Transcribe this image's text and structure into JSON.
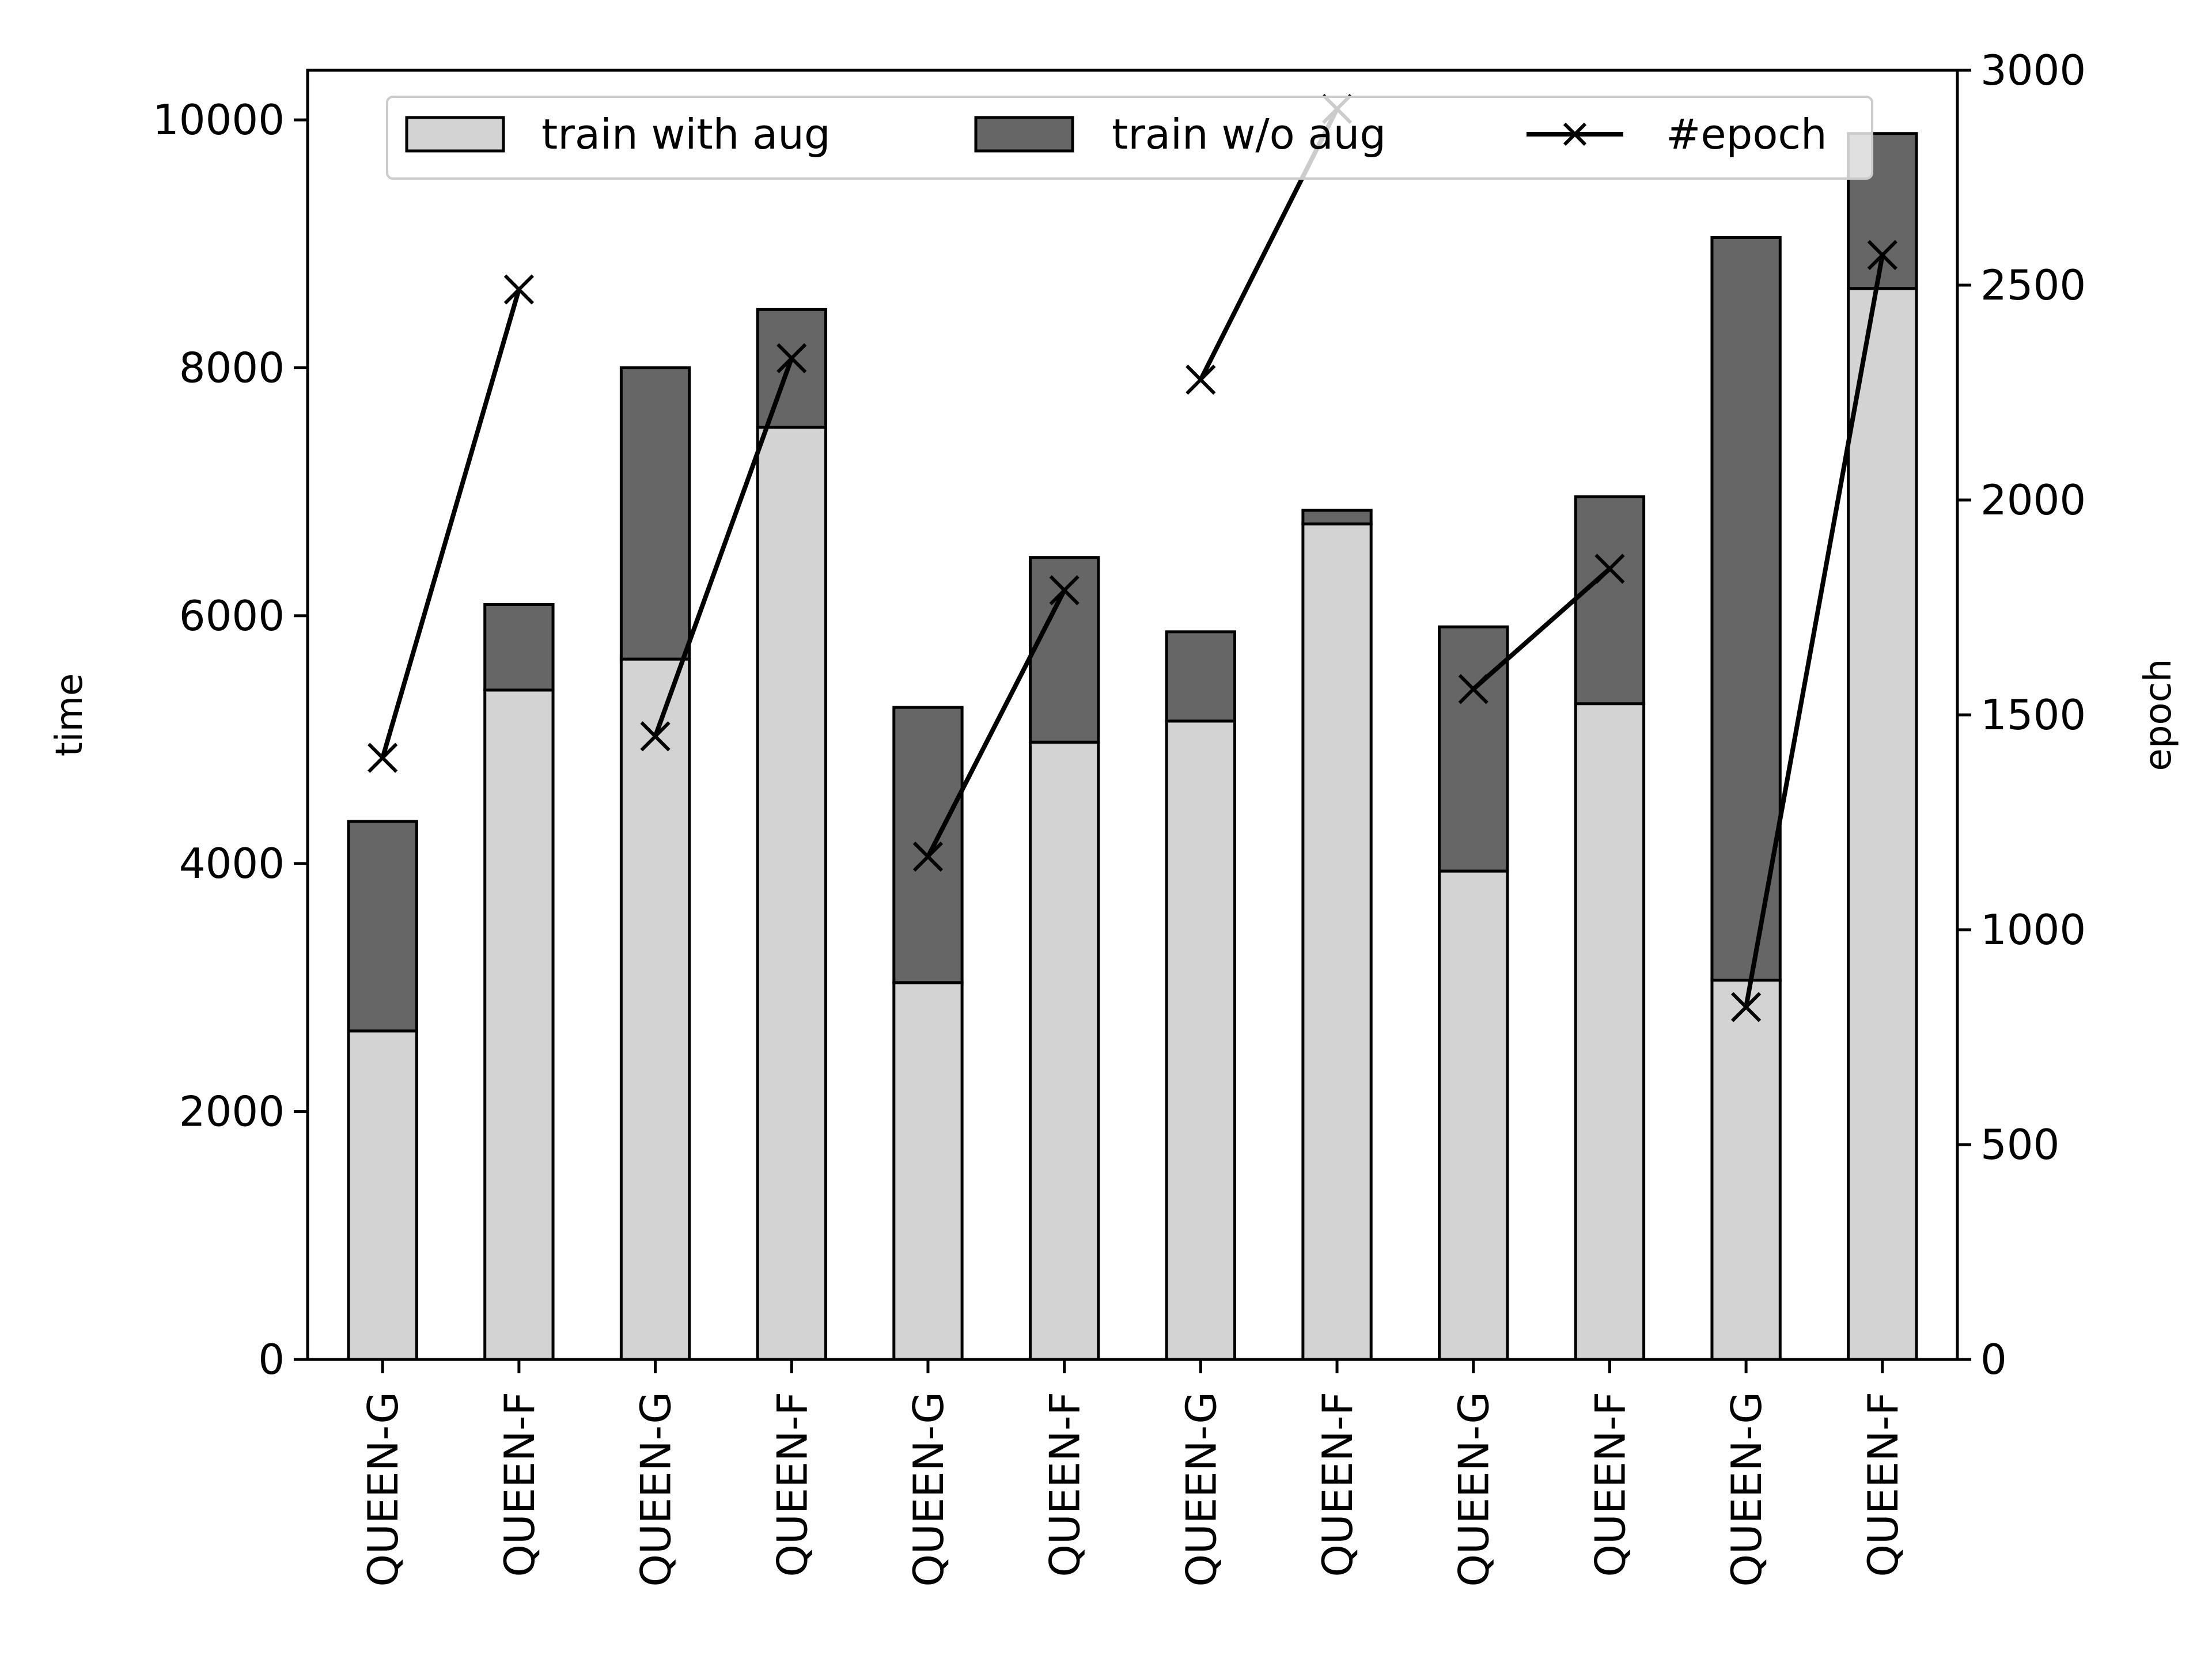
{
  "chart_data": {
    "type": "bar",
    "stacked": true,
    "categories": [
      "QUEEN-G",
      "QUEEN-F",
      "QUEEN-G",
      "QUEEN-F",
      "QUEEN-G",
      "QUEEN-F",
      "QUEEN-G",
      "QUEEN-F",
      "QUEEN-G",
      "QUEEN-F",
      "QUEEN-G",
      "QUEEN-F"
    ],
    "series": [
      {
        "name": "train with aug",
        "kind": "bar",
        "axis": "left",
        "color": "#d3d3d3",
        "values": [
          2650,
          5400,
          5650,
          7520,
          3040,
          4980,
          5150,
          6740,
          3940,
          5290,
          3060,
          8640
        ]
      },
      {
        "name": "train w/o aug",
        "kind": "bar",
        "axis": "left",
        "color": "#666666",
        "values": [
          1690,
          690,
          2350,
          950,
          2220,
          1490,
          720,
          110,
          1970,
          1670,
          5990,
          1250
        ]
      },
      {
        "name": "#epoch",
        "kind": "line",
        "axis": "right",
        "color": "#000000",
        "marker": "x",
        "values": [
          1400,
          2490,
          1450,
          2330,
          1170,
          1790,
          2280,
          2910,
          1560,
          1840,
          820,
          2570
        ]
      }
    ],
    "line_segments": [
      [
        0,
        1
      ],
      [
        2,
        3
      ],
      [
        4,
        5
      ],
      [
        6,
        7
      ],
      [
        8,
        9
      ],
      [
        10,
        11
      ]
    ],
    "ylabel": "time",
    "ylabel_right": "epoch",
    "ylim": [
      0,
      10400
    ],
    "ylim_right": [
      0,
      3000
    ],
    "yticks": [
      "0",
      "2000",
      "4000",
      "6000",
      "8000",
      "10000"
    ],
    "yticks_right": [
      "0",
      "500",
      "1000",
      "1500",
      "2000",
      "2500",
      "3000"
    ],
    "legend_position": "top",
    "grid": false
  }
}
